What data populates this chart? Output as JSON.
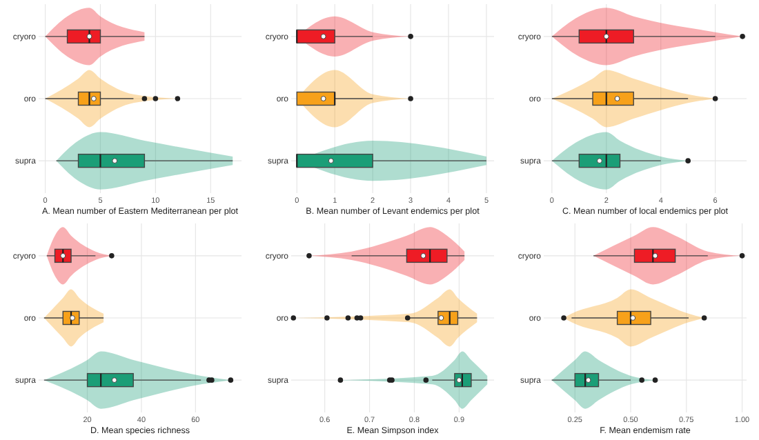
{
  "chart_data": [
    {
      "type": "box",
      "orientation": "horizontal",
      "grid": true,
      "xlabel": "A. Mean number of Eastern Mediterranean per plot",
      "categories": [
        "cryoro",
        "oro",
        "supra"
      ],
      "colors": [
        "#ee1c25",
        "#f7a11a",
        "#1b9e77"
      ],
      "xlim": [
        -0.6,
        17.8
      ],
      "xticks": [
        0,
        5,
        10,
        15
      ],
      "boxes": [
        {
          "low": 0,
          "q1": 2,
          "median": 4,
          "q3": 5,
          "high": 9,
          "mean": 4
        },
        {
          "low": 0,
          "q1": 3,
          "median": 4,
          "q3": 5,
          "high": 8,
          "mean": 4.4,
          "outliers": [
            9,
            10,
            12
          ]
        },
        {
          "low": 1,
          "q1": 3,
          "median": 5,
          "q3": 9,
          "high": 17,
          "mean": 6.3
        }
      ]
    },
    {
      "type": "box",
      "orientation": "horizontal",
      "grid": true,
      "xlabel": "B. Mean number of Levant endemics per plot",
      "categories": [
        "cryoro",
        "oro",
        "supra"
      ],
      "colors": [
        "#ee1c25",
        "#f7a11a",
        "#1b9e77"
      ],
      "xlim": [
        -0.15,
        5.2
      ],
      "xticks": [
        0,
        1,
        2,
        3,
        4,
        5
      ],
      "boxes": [
        {
          "low": 0,
          "q1": 0,
          "median": 0,
          "q3": 1,
          "high": 2,
          "mean": 0.7,
          "outliers": [
            3
          ]
        },
        {
          "low": 0,
          "q1": 0,
          "median": 1,
          "q3": 1,
          "high": 2,
          "mean": 0.7,
          "outliers": [
            3
          ]
        },
        {
          "low": 0,
          "q1": 0,
          "median": 0,
          "q3": 2,
          "high": 5,
          "mean": 0.9
        }
      ]
    },
    {
      "type": "box",
      "orientation": "horizontal",
      "grid": true,
      "xlabel": "C. Mean number of local endemics per plot",
      "categories": [
        "cryoro",
        "oro",
        "supra"
      ],
      "colors": [
        "#ee1c25",
        "#f7a11a",
        "#1b9e77"
      ],
      "xlim": [
        -0.3,
        7.15
      ],
      "xticks": [
        0,
        2,
        4,
        6
      ],
      "boxes": [
        {
          "low": 0,
          "q1": 1,
          "median": 2,
          "q3": 3,
          "high": 6,
          "mean": 2,
          "outliers": [
            7
          ]
        },
        {
          "low": 0,
          "q1": 1.5,
          "median": 2,
          "q3": 3,
          "high": 5,
          "mean": 2.4,
          "outliers": [
            6
          ]
        },
        {
          "low": 0,
          "q1": 1,
          "median": 2,
          "q3": 2.5,
          "high": 4,
          "mean": 1.75,
          "outliers": [
            5
          ]
        }
      ]
    },
    {
      "type": "box",
      "orientation": "horizontal",
      "grid": true,
      "xlabel": "D. Mean species richness",
      "categories": [
        "cryoro",
        "oro",
        "supra"
      ],
      "colors": [
        "#ee1c25",
        "#f7a11a",
        "#1b9e77"
      ],
      "xlim": [
        2,
        77
      ],
      "xticks": [
        20,
        40,
        60
      ],
      "boxes": [
        {
          "low": 5,
          "q1": 8,
          "median": 11,
          "q3": 14,
          "high": 23,
          "mean": 11,
          "outliers": [
            29
          ]
        },
        {
          "low": 4,
          "q1": 11,
          "median": 14,
          "q3": 17,
          "high": 26,
          "mean": 14.5
        },
        {
          "low": 4,
          "q1": 20,
          "median": 25,
          "q3": 37,
          "high": 62,
          "mean": 30,
          "outliers": [
            65,
            66,
            73
          ]
        }
      ]
    },
    {
      "type": "box",
      "orientation": "horizontal",
      "grid": true,
      "xlabel": "E. Mean Simpson index",
      "categories": [
        "cryoro",
        "oro",
        "supra"
      ],
      "colors": [
        "#ee1c25",
        "#f7a11a",
        "#1b9e77"
      ],
      "xlim": [
        0.525,
        0.978
      ],
      "xticks": [
        0.6,
        0.7,
        0.8,
        0.9
      ],
      "boxes": [
        {
          "low": 0.66,
          "q1": 0.783,
          "median": 0.835,
          "q3": 0.873,
          "high": 0.912,
          "mean": 0.82,
          "outliers": [
            0.565
          ]
        },
        {
          "low": 0.79,
          "q1": 0.853,
          "median": 0.879,
          "q3": 0.897,
          "high": 0.94,
          "mean": 0.86,
          "outliers": [
            0.53,
            0.605,
            0.652,
            0.672,
            0.68,
            0.785
          ]
        },
        {
          "low": 0.84,
          "q1": 0.89,
          "median": 0.907,
          "q3": 0.927,
          "high": 0.963,
          "mean": 0.9,
          "outliers": [
            0.635,
            0.745,
            0.75,
            0.826
          ]
        }
      ]
    },
    {
      "type": "box",
      "orientation": "horizontal",
      "grid": true,
      "xlabel": "F. Mean endemism rate",
      "categories": [
        "cryoro",
        "oro",
        "supra"
      ],
      "colors": [
        "#ee1c25",
        "#f7a11a",
        "#1b9e77"
      ],
      "xlim": [
        0.11,
        1.02
      ],
      "xticks": [
        {
          "value": 0.25,
          "label": "0.25"
        },
        {
          "value": 0.5,
          "label": "0.50"
        },
        {
          "value": 0.75,
          "label": "0.75"
        },
        {
          "value": 1,
          "label": "1.00"
        }
      ],
      "boxes": [
        {
          "low": 0.333,
          "q1": 0.517,
          "median": 0.6,
          "q3": 0.7,
          "high": 0.846,
          "mean": 0.61,
          "outliers": [
            1
          ]
        },
        {
          "low": 0.235,
          "q1": 0.44,
          "median": 0.5,
          "q3": 0.59,
          "high": 0.76,
          "mean": 0.51,
          "outliers": [
            0.2,
            0.83
          ]
        },
        {
          "low": 0.146,
          "q1": 0.25,
          "median": 0.296,
          "q3": 0.356,
          "high": 0.5,
          "mean": 0.31,
          "outliers": [
            0.55,
            0.61
          ]
        }
      ]
    }
  ]
}
